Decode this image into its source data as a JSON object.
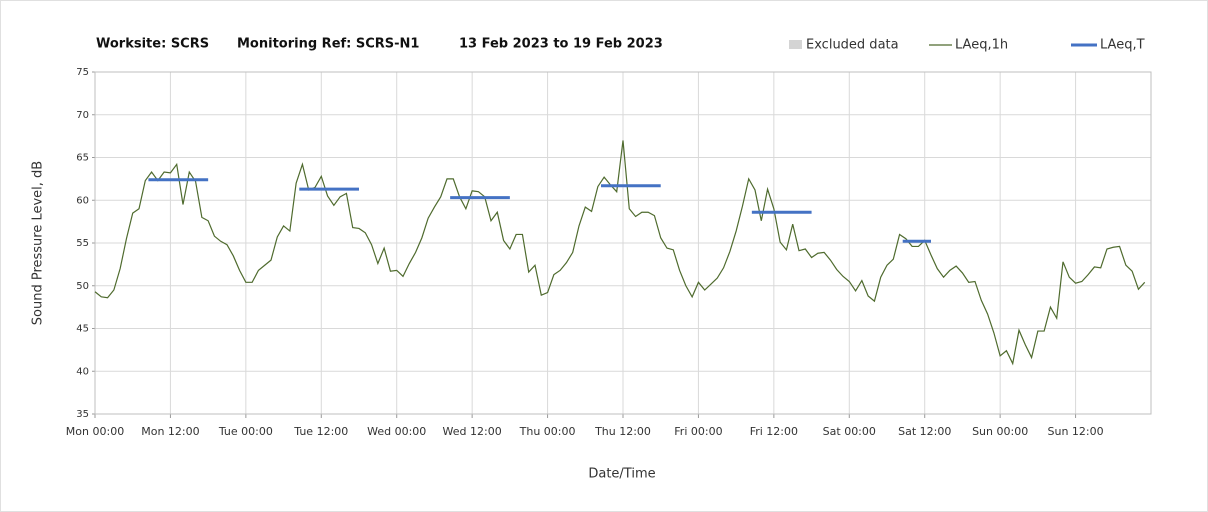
{
  "chart_data": {
    "type": "line",
    "title_parts": [
      "Worksite: SCRS",
      "Monitoring Ref: SCRS-N1",
      "13 Feb 2023 to 19 Feb 2023"
    ],
    "xlabel": "Date/Time",
    "ylabel": "Sound Pressure Level, dB",
    "xlim": [
      0,
      168
    ],
    "ylim": [
      35,
      75
    ],
    "yticks": [
      35,
      40,
      45,
      50,
      55,
      60,
      65,
      70,
      75
    ],
    "xticks": [
      {
        "value": 0,
        "label": "Mon 00:00"
      },
      {
        "value": 12,
        "label": "Mon 12:00"
      },
      {
        "value": 24,
        "label": "Tue 00:00"
      },
      {
        "value": 36,
        "label": "Tue 12:00"
      },
      {
        "value": 48,
        "label": "Wed 00:00"
      },
      {
        "value": 60,
        "label": "Wed 12:00"
      },
      {
        "value": 72,
        "label": "Thu 00:00"
      },
      {
        "value": 84,
        "label": "Thu 12:00"
      },
      {
        "value": 96,
        "label": "Fri 00:00"
      },
      {
        "value": 108,
        "label": "Fri 12:00"
      },
      {
        "value": 120,
        "label": "Sat 00:00"
      },
      {
        "value": 132,
        "label": "Sat 12:00"
      },
      {
        "value": 144,
        "label": "Sun 00:00"
      },
      {
        "value": 156,
        "label": "Sun 12:00"
      }
    ],
    "grid": true,
    "excluded": {
      "name": "Excluded data",
      "color": "#d4d4d4"
    },
    "series": [
      {
        "name": "LAeq,1h",
        "color": "#4f6b2e",
        "x": [
          0,
          1,
          2,
          3,
          4,
          5,
          6,
          7,
          8,
          9,
          10,
          11,
          12,
          13,
          14,
          15,
          16,
          17,
          18,
          19,
          20,
          21,
          22,
          23,
          24,
          25,
          26,
          27,
          28,
          29,
          30,
          31,
          32,
          33,
          34,
          35,
          36,
          37,
          38,
          39,
          40,
          41,
          42,
          43,
          44,
          45,
          46,
          47,
          48,
          49,
          50,
          51,
          52,
          53,
          54,
          55,
          56,
          57,
          58,
          59,
          60,
          61,
          62,
          63,
          64,
          65,
          66,
          67,
          68,
          69,
          70,
          71,
          72,
          73,
          74,
          75,
          76,
          77,
          78,
          79,
          80,
          81,
          82,
          83,
          84,
          85,
          86,
          87,
          88,
          89,
          90,
          91,
          92,
          93,
          94,
          95,
          96,
          97,
          98,
          99,
          100,
          101,
          102,
          103,
          104,
          105,
          106,
          107,
          108,
          109,
          110,
          111,
          112,
          113,
          114,
          115,
          116,
          117,
          118,
          119,
          120,
          121,
          122,
          123,
          124,
          125,
          126,
          127,
          128,
          129,
          130,
          131,
          132,
          133,
          134,
          135,
          136,
          137,
          138,
          139,
          140,
          141,
          142,
          143,
          144,
          145,
          146,
          147,
          148,
          149,
          150,
          151,
          152,
          153,
          154,
          155,
          156,
          157,
          158,
          159,
          160,
          161,
          162,
          163,
          164,
          165,
          166,
          167
        ],
        "values": [
          49.3,
          48.7,
          48.6,
          49.5,
          52,
          55.5,
          58.5,
          59,
          62.3,
          63.3,
          62.3,
          63.3,
          63.2,
          64.2,
          59.5,
          63.3,
          62.2,
          58,
          57.6,
          55.8,
          55.2,
          54.8,
          53.5,
          51.8,
          50.4,
          50.4,
          51.8,
          52.4,
          53,
          55.7,
          57,
          56.4,
          62,
          64.2,
          61.2,
          61.5,
          62.8,
          60.5,
          59.4,
          60.4,
          60.8,
          56.8,
          56.7,
          56.2,
          54.8,
          52.6,
          54.4,
          51.7,
          51.8,
          51.1,
          52.6,
          53.9,
          55.6,
          57.9,
          59.2,
          60.4,
          62.5,
          62.5,
          60.4,
          59,
          61.1,
          61,
          60.4,
          57.6,
          58.6,
          55.3,
          54.3,
          56,
          56,
          51.6,
          52.4,
          48.9,
          49.2,
          51.3,
          51.8,
          52.7,
          53.9,
          57,
          59.2,
          58.7,
          61.6,
          62.7,
          61.8,
          61,
          67,
          59,
          58.1,
          58.6,
          58.6,
          58.2,
          55.6,
          54.4,
          54.2,
          51.8,
          50,
          48.7,
          50.4,
          49.5,
          50.2,
          50.9,
          52.1,
          54,
          56.4,
          59.3,
          62.5,
          61.2,
          57.6,
          61.3,
          59,
          55.1,
          54.2,
          57.2,
          54.1,
          54.3,
          53.3,
          53.8,
          53.9,
          53,
          51.9,
          51.1,
          50.5,
          49.4,
          50.6,
          48.8,
          48.2,
          51,
          52.4,
          53.1,
          56,
          55.5,
          54.6,
          54.6,
          55.3,
          53.6,
          52,
          51,
          51.8,
          52.3,
          51.5,
          50.4,
          50.5,
          48.3,
          46.7,
          44.5,
          41.8,
          42.4,
          40.9,
          44.8,
          43.1,
          41.6,
          44.7,
          44.7,
          47.5,
          46.2,
          52.8,
          51,
          50.3,
          50.5,
          51.3,
          52.2,
          52.1,
          54.3,
          54.5,
          54.6,
          52.4,
          51.7,
          49.6,
          50.4
        ]
      },
      {
        "name": "LAeq,T",
        "color": "#4472c4",
        "segments": [
          {
            "start": 8.5,
            "end": 18,
            "value": 62.4
          },
          {
            "start": 32.5,
            "end": 42,
            "value": 61.3
          },
          {
            "start": 56.5,
            "end": 66,
            "value": 60.3
          },
          {
            "start": 80.5,
            "end": 90,
            "value": 61.7
          },
          {
            "start": 104.5,
            "end": 114,
            "value": 58.6
          },
          {
            "start": 128.5,
            "end": 133,
            "value": 55.2
          }
        ]
      }
    ]
  }
}
